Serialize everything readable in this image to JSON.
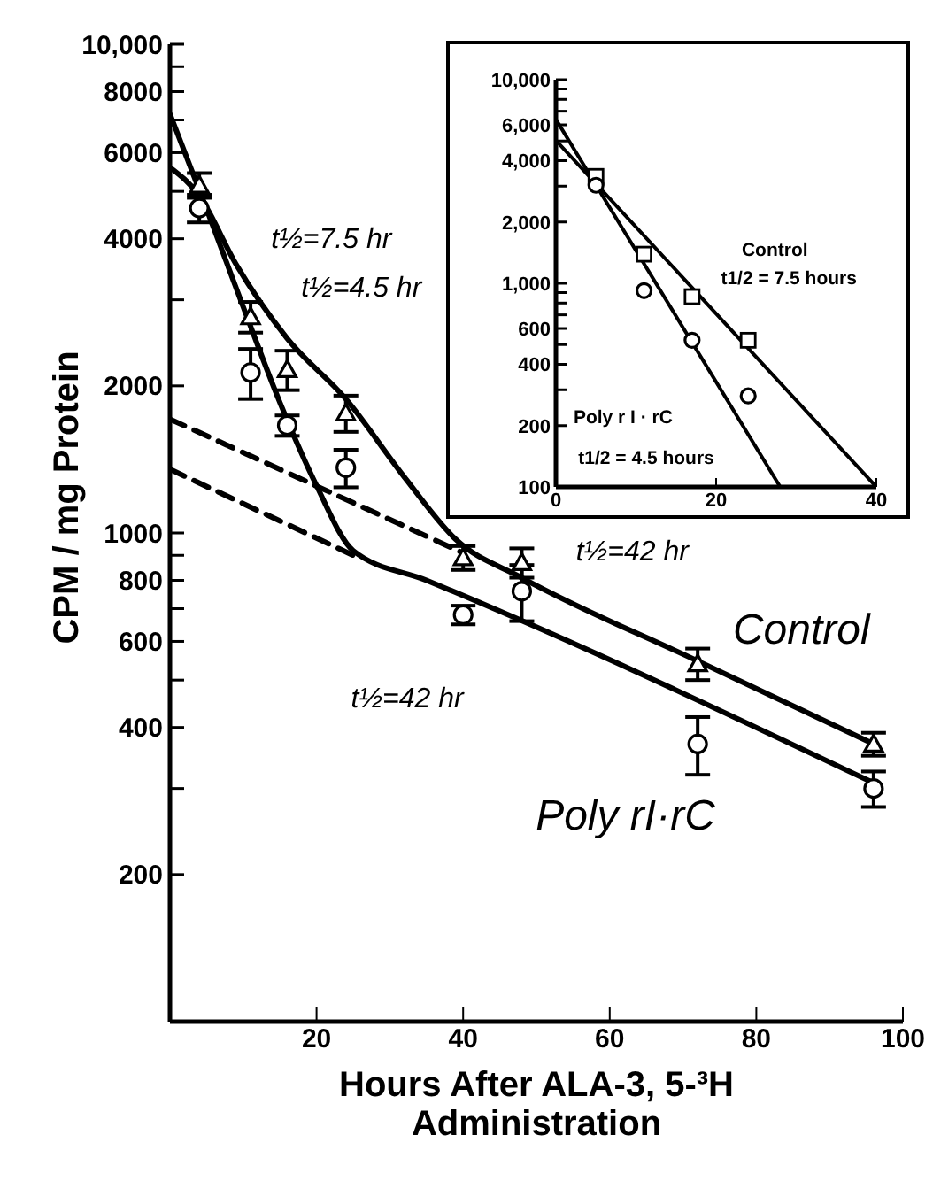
{
  "chart_data": [
    {
      "type": "scatter",
      "xlabel": "Hours After ALA-3, 5-³H Administration",
      "ylabel": "CPM / mg Protein",
      "log": true,
      "grid": false,
      "legend": false,
      "xlim": [
        0,
        100
      ],
      "xticks": [
        20,
        40,
        60,
        80,
        100
      ],
      "ylim": [
        100,
        10000
      ],
      "yticks": [
        200,
        {
          "value": 300,
          "label": null
        },
        400,
        {
          "value": 500,
          "label": null
        },
        600,
        {
          "value": 700,
          "label": null
        },
        800,
        {
          "value": 900,
          "label": null
        },
        1000,
        2000,
        {
          "value": 3000,
          "label": null
        },
        4000,
        {
          "value": 5000,
          "label": null
        },
        6000,
        {
          "value": 7000,
          "label": null
        },
        8000,
        {
          "value": 9000,
          "label": null
        },
        {
          "value": 10000,
          "label": "10,000"
        }
      ],
      "annotations": [
        "t½=7.5 hr",
        "t½=4.5 hr",
        "t½=42 hr",
        "t½=42 hr",
        "Control",
        "Poly rI·rC"
      ],
      "series": [
        {
          "marker": "triangle",
          "color": "#000000",
          "x": [
            4,
            11,
            16,
            24,
            40,
            48,
            72,
            96
          ],
          "values": [
            5150,
            2770,
            2160,
            1760,
            890,
            870,
            540,
            370
          ],
          "errors": [
            300,
            200,
            200,
            150,
            50,
            60,
            40,
            20
          ]
        },
        {
          "marker": "circle",
          "color": "#000000",
          "x": [
            4,
            11,
            16,
            24,
            40,
            48,
            72,
            96
          ],
          "values": [
            4620,
            2130,
            1660,
            1360,
            680,
            760,
            370,
            300
          ],
          "errors": [
            300,
            250,
            80,
            120,
            30,
            100,
            50,
            25
          ]
        },
        {
          "type": "line",
          "line_style": "solid",
          "color": "#000000",
          "x": [
            0,
            4,
            9,
            16,
            24,
            32,
            39,
            48,
            72,
            96
          ],
          "values": [
            5600,
            4900,
            3550,
            2500,
            1880,
            1300,
            970,
            810,
            547,
            370
          ]
        },
        {
          "type": "line",
          "line_style": "solid",
          "color": "#000000",
          "x": [
            0,
            5,
            10,
            15,
            20,
            25,
            35,
            96
          ],
          "values": [
            7200,
            4600,
            2900,
            1850,
            1250,
            920,
            800,
            308
          ]
        },
        {
          "type": "line",
          "line_style": "dashed",
          "color": "#000000",
          "x": [
            0,
            40
          ],
          "values": [
            1710,
            910
          ]
        },
        {
          "type": "line",
          "line_style": "dashed",
          "color": "#000000",
          "x": [
            0,
            25
          ],
          "values": [
            1350,
            900
          ]
        }
      ]
    },
    {
      "type": "scatter",
      "log": true,
      "grid": false,
      "legend": false,
      "xlim": [
        0,
        40
      ],
      "xticks": [
        0,
        20,
        40
      ],
      "ylim": [
        100,
        10000
      ],
      "yticks": [
        100,
        200,
        {
          "value": 300,
          "label": null
        },
        400,
        {
          "value": 500,
          "label": null
        },
        600,
        {
          "value": 700,
          "label": null
        },
        {
          "value": 800,
          "label": null
        },
        {
          "value": 900,
          "label": null
        },
        {
          "value": 1000,
          "label": "1,000"
        },
        {
          "value": 2000,
          "label": "2,000"
        },
        {
          "value": 3000,
          "label": null
        },
        {
          "value": 4000,
          "label": "4,000"
        },
        {
          "value": 5000,
          "label": null
        },
        {
          "value": 6000,
          "label": "6,000"
        },
        {
          "value": 7000,
          "label": null
        },
        {
          "value": 8000,
          "label": null
        },
        {
          "value": 9000,
          "label": null
        },
        {
          "value": 10000,
          "label": "10,000"
        }
      ],
      "annotations": [
        "Control",
        "t1/2 = 7.5 hours",
        "Poly r I · rC",
        "t1/2 = 4.5 hours"
      ],
      "series": [
        {
          "marker": "square",
          "color": "#000000",
          "x": [
            5,
            11,
            17,
            24
          ],
          "values": [
            3350,
            1390,
            860,
            525
          ]
        },
        {
          "marker": "circle",
          "color": "#000000",
          "x": [
            5,
            11,
            17,
            24
          ],
          "values": [
            3030,
            920,
            525,
            280
          ]
        },
        {
          "type": "line",
          "line_style": "solid",
          "color": "#000000",
          "x": [
            0,
            40
          ],
          "values": [
            5030,
            100
          ]
        },
        {
          "type": "line",
          "line_style": "solid",
          "color": "#000000",
          "x": [
            0,
            28
          ],
          "values": [
            6380,
            100
          ]
        }
      ]
    }
  ]
}
